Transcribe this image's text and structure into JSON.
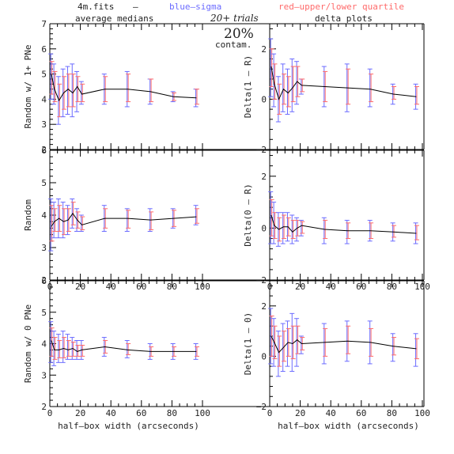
{
  "header": {
    "file": "4m.fits",
    "dash": "–",
    "blue": "blue–sigma",
    "red": "red–upper/lower quartile",
    "left_title": "average medians",
    "right_title": "delta plots",
    "trials": "20+ trials",
    "contam_pct": "20%",
    "contam_word": "contam.",
    "blue_color": "#6b6bff",
    "red_color": "#ff6b6b",
    "median_color": "#000000"
  },
  "chart_data": [
    {
      "type": "line",
      "ylabel": "Random w/ 1+ PNe",
      "xlim": [
        0,
        100
      ],
      "ylim": [
        2,
        7
      ],
      "yticks": [
        2,
        3,
        4,
        5,
        6,
        7
      ],
      "xticks": [],
      "x": [
        1,
        3,
        6,
        9,
        12,
        15,
        18,
        21,
        36,
        51,
        66,
        81,
        96
      ],
      "series": [
        {
          "values": [
            5.0,
            4.4,
            3.95,
            4.25,
            4.4,
            4.25,
            4.5,
            4.2,
            4.4,
            4.4,
            4.3,
            4.1,
            4.05
          ],
          "blue_low": [
            4.0,
            3.8,
            3.0,
            3.3,
            3.4,
            3.3,
            3.5,
            3.8,
            3.8,
            3.7,
            3.8,
            3.9,
            3.7
          ],
          "blue_high": [
            5.8,
            5.4,
            4.9,
            5.2,
            5.3,
            5.4,
            5.1,
            4.7,
            5.0,
            5.1,
            4.8,
            4.3,
            4.4
          ],
          "red_low": [
            4.2,
            3.9,
            3.3,
            3.6,
            3.7,
            3.7,
            3.9,
            3.9,
            3.9,
            3.9,
            3.9,
            3.95,
            3.8
          ],
          "red_high": [
            5.5,
            5.1,
            4.6,
            4.9,
            5.0,
            5.0,
            4.9,
            4.6,
            4.9,
            5.0,
            4.8,
            4.25,
            4.4
          ]
        }
      ]
    },
    {
      "type": "line",
      "ylabel": "Delta(1 – R)",
      "xlim": [
        0,
        100
      ],
      "ylim": [
        -2,
        3
      ],
      "yticks": [
        -2,
        0,
        2
      ],
      "xticks": [],
      "x": [
        1,
        3,
        6,
        9,
        12,
        15,
        18,
        21,
        36,
        51,
        66,
        81,
        96
      ],
      "series": [
        {
          "values": [
            1.3,
            0.6,
            0.0,
            0.4,
            0.25,
            0.45,
            0.7,
            0.55,
            0.5,
            0.45,
            0.4,
            0.2,
            0.1
          ],
          "blue_low": [
            0.1,
            -0.3,
            -0.9,
            -0.5,
            -0.6,
            -0.5,
            -0.2,
            0.2,
            -0.3,
            -0.5,
            -0.3,
            -0.2,
            -0.4
          ],
          "blue_high": [
            2.4,
            1.8,
            0.9,
            1.4,
            1.2,
            1.6,
            1.5,
            0.8,
            1.3,
            1.4,
            1.2,
            0.6,
            0.6
          ],
          "red_low": [
            0.5,
            0.0,
            -0.6,
            -0.2,
            -0.3,
            -0.1,
            0.1,
            0.3,
            -0.1,
            -0.2,
            -0.1,
            0.0,
            -0.2
          ],
          "red_high": [
            2.0,
            1.4,
            0.6,
            1.0,
            0.9,
            1.3,
            1.3,
            0.8,
            1.1,
            1.2,
            1.0,
            0.5,
            0.5
          ]
        }
      ]
    },
    {
      "type": "line",
      "ylabel": "Random",
      "xlim": [
        0,
        100
      ],
      "ylim": [
        2,
        6
      ],
      "yticks": [
        2,
        3,
        4,
        5,
        6
      ],
      "xticks": [
        0,
        20,
        40,
        60,
        80,
        100
      ],
      "x": [
        1,
        3,
        6,
        9,
        12,
        15,
        18,
        21,
        36,
        51,
        66,
        81,
        96
      ],
      "series": [
        {
          "values": [
            3.65,
            3.8,
            3.9,
            3.8,
            3.85,
            4.05,
            3.85,
            3.7,
            3.9,
            3.9,
            3.85,
            3.9,
            3.95
          ],
          "blue_low": [
            2.9,
            3.3,
            3.3,
            3.3,
            3.4,
            3.6,
            3.5,
            3.5,
            3.5,
            3.5,
            3.5,
            3.6,
            3.7
          ],
          "blue_high": [
            4.5,
            4.4,
            4.5,
            4.4,
            4.3,
            4.5,
            4.2,
            4.0,
            4.3,
            4.2,
            4.2,
            4.2,
            4.3
          ],
          "red_low": [
            3.2,
            3.5,
            3.5,
            3.4,
            3.5,
            3.7,
            3.6,
            3.55,
            3.6,
            3.6,
            3.55,
            3.65,
            3.75
          ],
          "red_high": [
            4.3,
            4.2,
            4.3,
            4.2,
            4.2,
            4.4,
            4.1,
            3.95,
            4.2,
            4.15,
            4.1,
            4.15,
            4.2
          ]
        }
      ]
    },
    {
      "type": "line",
      "ylabel": "Delta(0 – R)",
      "xlim": [
        0,
        100
      ],
      "ylim": [
        -2,
        3
      ],
      "yticks": [
        -2,
        0,
        2
      ],
      "xticks": [
        0,
        20,
        40,
        60,
        80,
        100
      ],
      "x": [
        1,
        3,
        6,
        9,
        12,
        15,
        18,
        21,
        36,
        51,
        66,
        81,
        96
      ],
      "series": [
        {
          "values": [
            0.5,
            0.1,
            -0.05,
            0.05,
            0.05,
            -0.15,
            0.0,
            0.1,
            -0.05,
            -0.1,
            -0.1,
            -0.15,
            -0.2
          ],
          "blue_low": [
            -0.6,
            -0.6,
            -0.7,
            -0.6,
            -0.5,
            -0.6,
            -0.5,
            -0.3,
            -0.6,
            -0.6,
            -0.5,
            -0.5,
            -0.6
          ],
          "blue_high": [
            1.4,
            1.0,
            0.6,
            0.6,
            0.6,
            0.5,
            0.4,
            0.3,
            0.4,
            0.3,
            0.3,
            0.2,
            0.2
          ],
          "red_low": [
            -0.3,
            -0.4,
            -0.5,
            -0.4,
            -0.3,
            -0.4,
            -0.3,
            -0.2,
            -0.4,
            -0.4,
            -0.4,
            -0.35,
            -0.45
          ],
          "red_high": [
            1.1,
            0.6,
            0.4,
            0.5,
            0.4,
            0.3,
            0.3,
            0.25,
            0.3,
            0.2,
            0.2,
            0.1,
            0.1
          ]
        }
      ]
    },
    {
      "type": "line",
      "ylabel": "Random w/ 0 PNe",
      "xlim": [
        0,
        100
      ],
      "ylim": [
        2,
        6
      ],
      "yticks": [
        2,
        3,
        4,
        5,
        6
      ],
      "xticks": [
        0,
        20,
        40,
        60,
        80,
        100
      ],
      "xlabel": "half–box width (arcseconds)",
      "x": [
        1,
        3,
        6,
        9,
        12,
        15,
        18,
        21,
        36,
        51,
        66,
        81,
        96
      ],
      "series": [
        {
          "values": [
            4.1,
            3.8,
            3.8,
            3.85,
            3.8,
            3.85,
            3.75,
            3.8,
            3.9,
            3.8,
            3.75,
            3.75,
            3.75
          ],
          "blue_low": [
            3.4,
            3.3,
            3.4,
            3.4,
            3.5,
            3.5,
            3.5,
            3.5,
            3.6,
            3.55,
            3.5,
            3.5,
            3.5
          ],
          "blue_high": [
            4.7,
            4.4,
            4.3,
            4.4,
            4.3,
            4.2,
            4.1,
            4.1,
            4.2,
            4.1,
            4.0,
            4.0,
            4.0
          ],
          "red_low": [
            3.6,
            3.5,
            3.55,
            3.55,
            3.6,
            3.6,
            3.6,
            3.6,
            3.7,
            3.65,
            3.6,
            3.6,
            3.6
          ],
          "red_high": [
            4.5,
            4.2,
            4.1,
            4.2,
            4.1,
            4.05,
            3.95,
            3.95,
            4.1,
            4.0,
            3.9,
            3.9,
            3.9
          ]
        }
      ]
    },
    {
      "type": "line",
      "ylabel": "Delta(1 – 0)",
      "xlim": [
        0,
        100
      ],
      "ylim": [
        -2,
        3
      ],
      "yticks": [
        -2,
        0,
        2
      ],
      "xticks": [
        0,
        20,
        40,
        60,
        80,
        100
      ],
      "xlabel": "half–box width (arcseconds)",
      "x": [
        1,
        3,
        6,
        9,
        12,
        15,
        18,
        21,
        36,
        51,
        66,
        81,
        96
      ],
      "series": [
        {
          "values": [
            0.8,
            0.55,
            0.15,
            0.35,
            0.55,
            0.5,
            0.65,
            0.5,
            0.55,
            0.6,
            0.55,
            0.4,
            0.3
          ],
          "blue_low": [
            -0.3,
            -0.4,
            -0.8,
            -0.6,
            -0.4,
            -0.6,
            -0.4,
            0.1,
            -0.3,
            -0.2,
            -0.3,
            -0.2,
            -0.4
          ],
          "blue_high": [
            1.9,
            1.5,
            1.0,
            1.3,
            1.4,
            1.7,
            1.5,
            0.8,
            1.3,
            1.4,
            1.4,
            0.9,
            0.9
          ],
          "red_low": [
            0.0,
            -0.1,
            -0.4,
            -0.2,
            0.0,
            -0.1,
            0.1,
            0.25,
            0.0,
            0.1,
            0.0,
            0.05,
            -0.1
          ],
          "red_high": [
            1.6,
            1.2,
            0.8,
            1.0,
            1.1,
            1.2,
            1.2,
            0.75,
            1.1,
            1.2,
            1.1,
            0.75,
            0.7
          ]
        }
      ]
    }
  ]
}
